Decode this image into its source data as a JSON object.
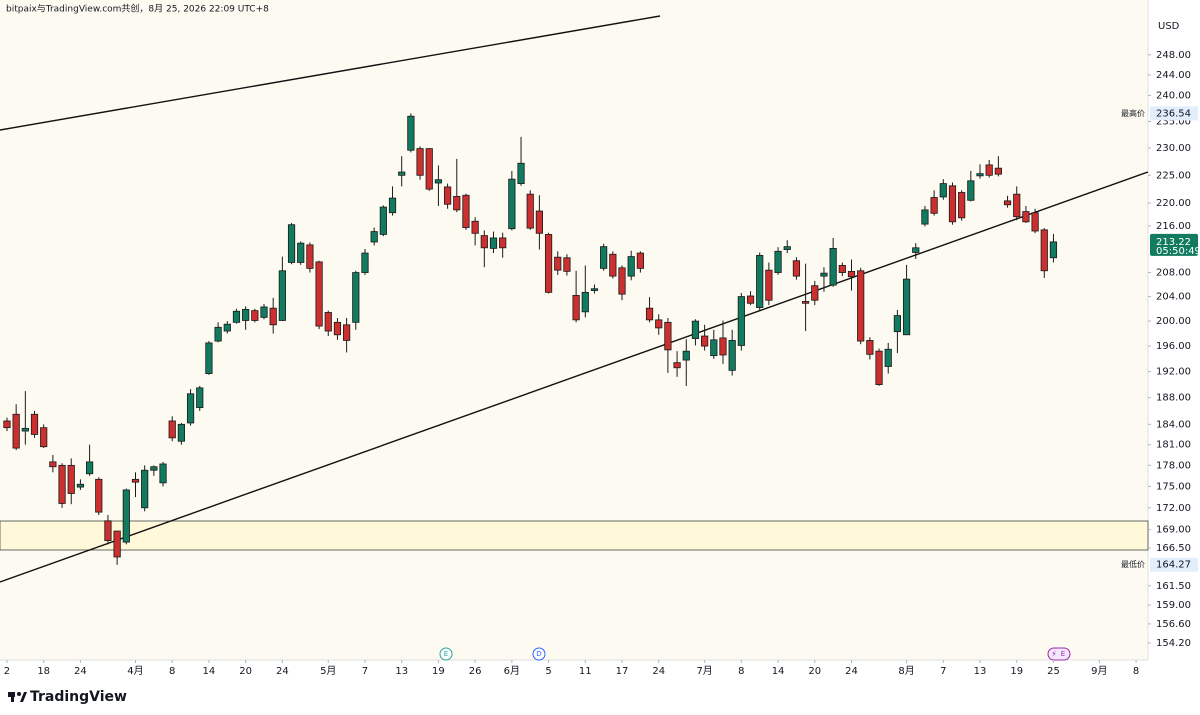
{
  "header": "bitpaix与TradingView.com共创，8月 25, 2026 22:09 UTC+8",
  "brand": "TradingView",
  "chart_data": {
    "type": "candlestick",
    "currency": "USD",
    "y_scale": "log",
    "y_axis_side": "right",
    "colors": {
      "up": "#127a5f",
      "down": "#cc2f2f"
    },
    "ylim": [
      152.1,
      255.9
    ],
    "yticks": [
      {
        "value": 154.2,
        "label": "154.20"
      },
      {
        "value": 156.6,
        "label": "156.60"
      },
      {
        "value": 159,
        "label": "159.00"
      },
      {
        "value": 161.5,
        "label": "161.50"
      },
      {
        "value": 166.5,
        "label": "166.50"
      },
      {
        "value": 169,
        "label": "169.00"
      },
      {
        "value": 172,
        "label": "172.00"
      },
      {
        "value": 175,
        "label": "175.00"
      },
      {
        "value": 178,
        "label": "178.00"
      },
      {
        "value": 181,
        "label": "181.00"
      },
      {
        "value": 184,
        "label": "184.00"
      },
      {
        "value": 188,
        "label": "188.00"
      },
      {
        "value": 192,
        "label": "192.00"
      },
      {
        "value": 196,
        "label": "196.00"
      },
      {
        "value": 200,
        "label": "200.00"
      },
      {
        "value": 204,
        "label": "204.00"
      },
      {
        "value": 208,
        "label": "208.00"
      },
      {
        "value": 216,
        "label": "216.00"
      },
      {
        "value": 220,
        "label": "220.00"
      },
      {
        "value": 225,
        "label": "225.00"
      },
      {
        "value": 230,
        "label": "230.00"
      },
      {
        "value": 235,
        "label": "235.00"
      },
      {
        "value": 240,
        "label": "240.00"
      },
      {
        "value": 244,
        "label": "244.00"
      },
      {
        "value": 248,
        "label": "248.00"
      }
    ],
    "xlim": [
      -0.76,
      124.3
    ],
    "xticks": [
      {
        "value": 0,
        "label": "2"
      },
      {
        "value": 4,
        "label": "18"
      },
      {
        "value": 8,
        "label": "24"
      },
      {
        "value": 14,
        "label": "4月"
      },
      {
        "value": 18,
        "label": "8"
      },
      {
        "value": 22,
        "label": "14"
      },
      {
        "value": 26,
        "label": "20"
      },
      {
        "value": 30,
        "label": "24"
      },
      {
        "value": 35,
        "label": "5月"
      },
      {
        "value": 39,
        "label": "7"
      },
      {
        "value": 43,
        "label": "13"
      },
      {
        "value": 47,
        "label": "19"
      },
      {
        "value": 51,
        "label": "26"
      },
      {
        "value": 55,
        "label": "6月"
      },
      {
        "value": 59,
        "label": "5"
      },
      {
        "value": 63,
        "label": "11"
      },
      {
        "value": 67,
        "label": "17"
      },
      {
        "value": 71,
        "label": "24"
      },
      {
        "value": 76,
        "label": "7月"
      },
      {
        "value": 80,
        "label": "8"
      },
      {
        "value": 84,
        "label": "14"
      },
      {
        "value": 88,
        "label": "20"
      },
      {
        "value": 92,
        "label": "24"
      },
      {
        "value": 98,
        "label": "8月"
      },
      {
        "value": 102,
        "label": "7"
      },
      {
        "value": 106,
        "label": "13"
      },
      {
        "value": 110,
        "label": "19"
      },
      {
        "value": 114,
        "label": "25"
      },
      {
        "value": 119,
        "label": "9月"
      },
      {
        "value": 123,
        "label": "8"
      }
    ],
    "open": [
      184.5,
      185.5,
      183,
      185.5,
      183.5,
      178.5,
      178,
      178,
      174.9,
      176.8,
      176,
      170.2,
      168.8,
      167.3,
      176,
      172,
      177.3,
      175.5,
      184.5,
      181.5,
      184.2,
      186.5,
      191.7,
      196.8,
      198.4,
      199.8,
      200.1,
      201.7,
      200.6,
      202.1,
      200.1,
      209.7,
      209.7,
      212.7,
      209.8,
      201.4,
      199.8,
      199.4,
      199.8,
      208,
      213.2,
      214.5,
      218.3,
      225,
      229.6,
      229.9,
      229.9,
      223.6,
      222.9,
      221.2,
      221.4,
      216.8,
      214.3,
      212.1,
      213.9,
      215.5,
      223.5,
      221.6,
      218.6,
      214.5,
      210.6,
      210.5,
      204.2,
      201.5,
      205,
      208.7,
      211.1,
      208.8,
      207.4,
      211.3,
      202.1,
      200.2,
      199.8,
      193.4,
      193.8,
      197.2,
      197.6,
      194.5,
      197.3,
      192.2,
      196.1,
      204.1,
      202.2,
      208.4,
      208,
      211.9,
      210,
      203.2,
      205.8,
      207.4,
      205.9,
      209.2,
      208.2,
      208.3,
      196.9,
      195.2,
      192.8,
      198.3,
      197.8,
      211.4,
      216.3,
      221,
      221.1,
      223.1,
      221.9,
      220.5,
      224.9,
      226.9,
      226.3,
      220.4,
      221.6,
      218.5,
      218.3,
      215.3,
      210.5
    ],
    "high": [
      185,
      187,
      189,
      186,
      184,
      179.5,
      178.3,
      179,
      176,
      181,
      176.3,
      171,
      168.8,
      174.7,
      177,
      178,
      178,
      178.5,
      185.2,
      184.2,
      189.3,
      189.8,
      196.8,
      199.8,
      200,
      202,
      202.4,
      202,
      202.8,
      203.8,
      210.7,
      216.5,
      213.3,
      213.1,
      210,
      201.7,
      200.5,
      200.5,
      208.3,
      212,
      215.7,
      219.6,
      223,
      228.5,
      236.54,
      230.3,
      230,
      226.8,
      223.5,
      228,
      221.7,
      217.5,
      215.2,
      215,
      214.8,
      225.8,
      232.1,
      222.3,
      221.4,
      214.8,
      211.6,
      211.1,
      208.3,
      209.2,
      206,
      212.9,
      211.6,
      209.2,
      211.7,
      211.6,
      203.9,
      201.1,
      200.5,
      195.2,
      197.1,
      200.3,
      199.4,
      198.6,
      200.1,
      198.6,
      204.6,
      204.9,
      211.4,
      209.7,
      212.3,
      213.5,
      210.6,
      209.5,
      206.6,
      208.9,
      213.9,
      209.7,
      210.2,
      208.8,
      197.4,
      195.6,
      196.5,
      201.8,
      209.3,
      213,
      219.5,
      222.3,
      224.3,
      223.7,
      222.3,
      225.8,
      227,
      227.8,
      228.5,
      221.3,
      223,
      219.5,
      219,
      215.6,
      214.6
    ],
    "low": [
      183,
      180.2,
      181,
      182,
      180.5,
      177,
      172,
      172.5,
      174.5,
      176.5,
      171,
      167,
      164.27,
      167,
      173.5,
      171.5,
      176.5,
      175,
      181.5,
      181,
      183.8,
      186,
      191.5,
      196.6,
      198,
      199.6,
      198.6,
      199.8,
      200.3,
      198,
      200,
      209.4,
      209.3,
      208,
      198.7,
      197.6,
      197,
      195,
      198.6,
      207.6,
      212.6,
      214.2,
      217.8,
      223,
      229.2,
      224.2,
      222.2,
      219.5,
      219,
      218.4,
      215.3,
      212.6,
      208.9,
      211.3,
      210.5,
      215.2,
      223.1,
      215.3,
      211.9,
      204.5,
      207.6,
      207.5,
      199.8,
      200.6,
      204.5,
      208.3,
      207,
      203.4,
      206.7,
      208,
      199.8,
      197.8,
      191.8,
      191.2,
      189.8,
      196.1,
      195.3,
      194,
      193.2,
      191.4,
      195.3,
      202.6,
      201.8,
      202.6,
      207.6,
      211.3,
      206.8,
      198.4,
      202.6,
      204.8,
      205.6,
      207.4,
      205,
      196.3,
      193.9,
      189.8,
      191.7,
      194.9,
      197.8,
      210.3,
      215.9,
      217.8,
      220.6,
      216.2,
      216.9,
      220.3,
      224.4,
      224.6,
      224.8,
      219.2,
      217,
      216.5,
      214.7,
      207.1,
      209.7
    ],
    "close": [
      183.5,
      180.5,
      183.4,
      182.5,
      180.7,
      177.8,
      172.6,
      174,
      175.3,
      178.5,
      171.4,
      167.5,
      165.3,
      174.5,
      175.6,
      177.3,
      177.8,
      178.2,
      182,
      184,
      188.6,
      189.5,
      196.5,
      199,
      199.5,
      201.6,
      201.9,
      200.1,
      202.3,
      199.4,
      208.3,
      216.2,
      213,
      208.7,
      199.2,
      198.4,
      197.8,
      196.9,
      208,
      211.3,
      215,
      219.3,
      220.9,
      225.6,
      236,
      225,
      222.5,
      224.2,
      219.8,
      218.8,
      215.7,
      214.7,
      212.2,
      213.9,
      212.2,
      224.3,
      227.2,
      215.6,
      214.7,
      204.7,
      208.4,
      208.2,
      200.2,
      204.7,
      205.3,
      212.4,
      207.4,
      204.4,
      210.7,
      208.7,
      200.2,
      198.9,
      195.4,
      192.6,
      195.2,
      200,
      196,
      197,
      194.6,
      196.9,
      204,
      202.9,
      210.9,
      203.4,
      211.6,
      212.4,
      207.4,
      202.9,
      203.4,
      207.9,
      212.1,
      208,
      207.3,
      196.8,
      194.7,
      190,
      195.5,
      200.9,
      206.9,
      212.2,
      218.8,
      218.2,
      223.5,
      216.7,
      217.4,
      224,
      225.3,
      225,
      225.2,
      219.7,
      217.6,
      216.7,
      215.1,
      208.3,
      213.22
    ],
    "high_marker": {
      "label": "最高价",
      "value": 236.54
    },
    "low_marker": {
      "label": "最低价",
      "value": 164.27
    },
    "last_price": 213.22,
    "countdown": "05:50:49",
    "events": [
      "E",
      "D",
      "E"
    ]
  }
}
